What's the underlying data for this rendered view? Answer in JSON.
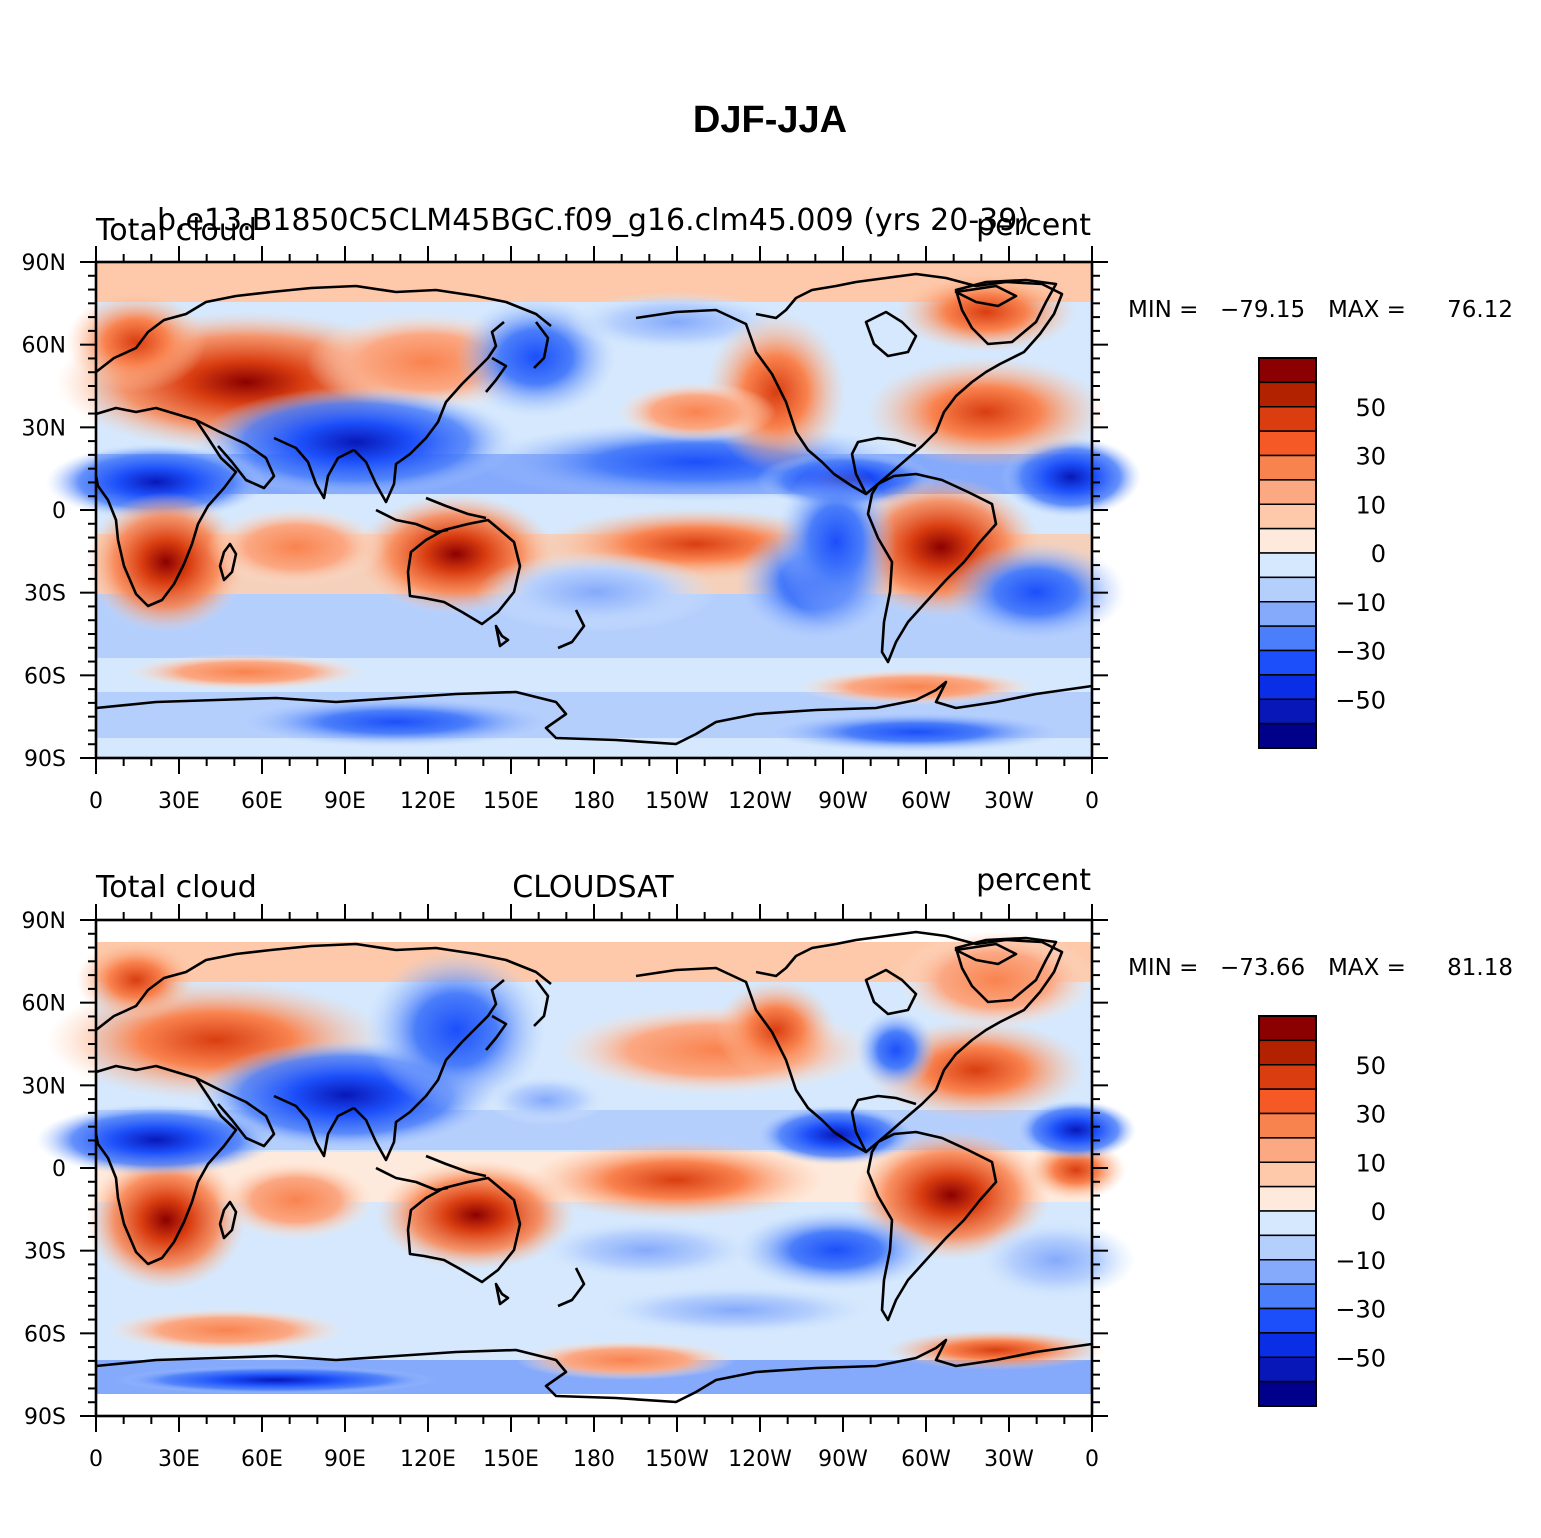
{
  "figure_title": "DJF-JJA",
  "panels": [
    {
      "id": "model",
      "left_label": "Total cloud",
      "center_label": "b.e13.B1850C5CLM45BGC.f09_g16.clm45.009 (yrs 20-39)",
      "right_label": "percent",
      "min_label": "MIN =",
      "min_value": "−79.15",
      "max_label": "MAX =",
      "max_value": "76.12"
    },
    {
      "id": "obs",
      "left_label": "Total cloud",
      "center_label": "CLOUDSAT",
      "right_label": "percent",
      "min_label": "MIN =",
      "min_value": "−73.66",
      "max_label": "MAX =",
      "max_value": "81.18"
    }
  ],
  "axes": {
    "lat_ticks": [
      "90N",
      "60N",
      "30N",
      "0",
      "30S",
      "60S",
      "90S"
    ],
    "lon_ticks": [
      "0",
      "30E",
      "60E",
      "90E",
      "120E",
      "150E",
      "180",
      "150W",
      "120W",
      "90W",
      "60W",
      "30W",
      "0"
    ]
  },
  "colorbar": {
    "labels": [
      "50",
      "30",
      "10",
      "0",
      "−10",
      "−30",
      "−50"
    ],
    "colors": [
      "#8b0000",
      "#b22200",
      "#d93d10",
      "#f55a26",
      "#f9834f",
      "#fba883",
      "#fdc9aa",
      "#feeadc",
      "#d5e8fd",
      "#b5cffd",
      "#85aafb",
      "#4a7efa",
      "#1c4ffa",
      "#0a2ee6",
      "#0818b8",
      "#00008a"
    ]
  },
  "colors": {
    "land_outline": "#000000",
    "background": "#ffffff"
  }
}
